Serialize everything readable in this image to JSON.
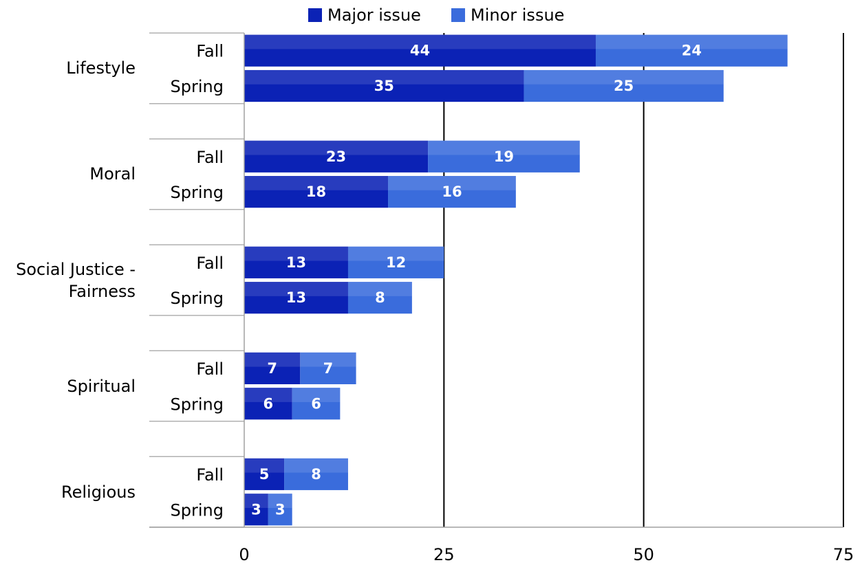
{
  "chart_data": {
    "type": "bar",
    "orientation": "horizontal",
    "stacked": true,
    "groups": [
      {
        "name": "Lifestyle",
        "categories": [
          "Fall",
          "Spring"
        ]
      },
      {
        "name": "Moral",
        "categories": [
          "Fall",
          "Spring"
        ]
      },
      {
        "name": "Social Justice - Fairness",
        "categories": [
          "Fall",
          "Spring"
        ]
      },
      {
        "name": "Spiritual",
        "categories": [
          "Fall",
          "Spring"
        ]
      },
      {
        "name": "Religious",
        "categories": [
          "Fall",
          "Spring"
        ]
      }
    ],
    "series": [
      {
        "name": "Major issue",
        "color": "#0b22b5",
        "values": [
          44,
          35,
          23,
          18,
          13,
          13,
          7,
          6,
          5,
          3
        ]
      },
      {
        "name": "Minor issue",
        "color": "#3a6cdc",
        "values": [
          24,
          25,
          19,
          16,
          12,
          8,
          7,
          6,
          8,
          3
        ]
      }
    ],
    "xlim": [
      0,
      75
    ],
    "xticks": [
      0,
      25,
      50,
      75
    ],
    "grid": true,
    "legend": "top"
  }
}
